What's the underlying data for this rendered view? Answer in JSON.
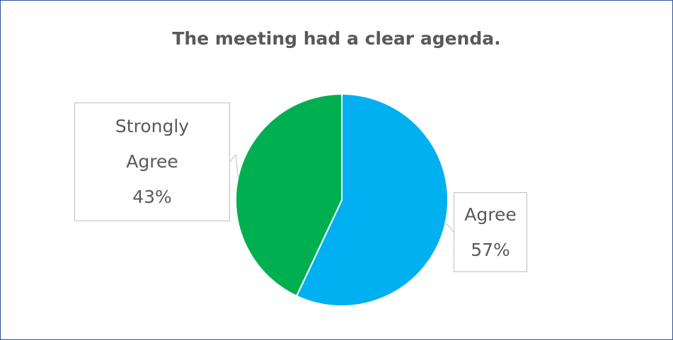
{
  "chart_data": {
    "type": "pie",
    "title": "The meeting had a clear agenda.",
    "categories": [
      "Agree",
      "Strongly Agree"
    ],
    "values": [
      57,
      43
    ],
    "value_labels": [
      "57%",
      "43%"
    ],
    "colors": [
      "#00b0f0",
      "#00b050"
    ]
  }
}
